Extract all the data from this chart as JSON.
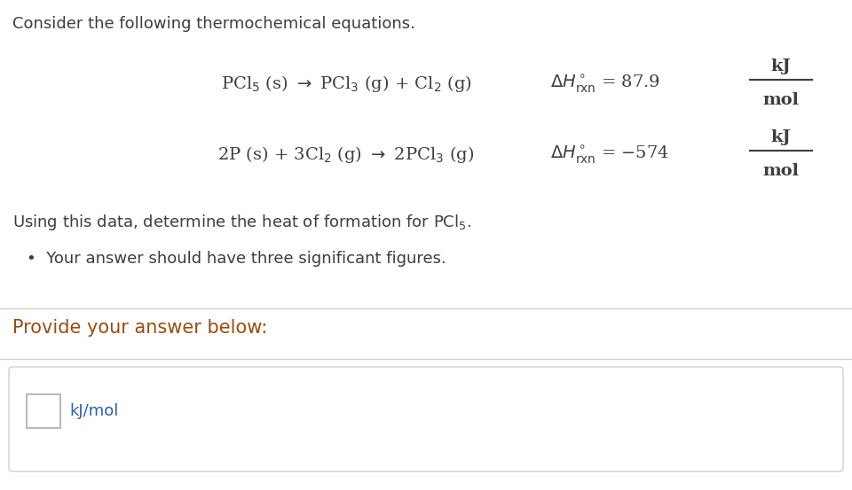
{
  "bg_color": "#ffffff",
  "text_color": "#3d3d3d",
  "title_text": "Consider the following thermochemical equations.",
  "eq1_lhs": "PCl$_5$ (s) $\\rightarrow$ PCl$_3$ (g) + Cl$_2$ (g)",
  "eq1_dH": "$\\Delta H^\\circ_{\\mathrm{rxn}}$ = 87.9",
  "eq1_unit_top": "kJ",
  "eq1_unit_bot": "mol",
  "eq2_lhs": "2P (s) + 3Cl$_2$ (g) $\\rightarrow$ 2PCl$_3$ (g)",
  "eq2_dH": "$\\Delta H^\\circ_{\\mathrm{rxn}}$ = −574",
  "eq2_unit_top": "kJ",
  "eq2_unit_bot": "mol",
  "using_text": "Using this data, determine the heat of formation for PCl$_5$.",
  "bullet_text": "Your answer should have three significant figures.",
  "provide_text": "Provide your answer below:",
  "provide_color": "#9b4d0f",
  "input_label": "kJ/mol",
  "input_label_color": "#2b5fa5",
  "line_color": "#d0d0d0",
  "box_bg_color": "#f9f9f9",
  "font_size_title": 13,
  "font_size_eq": 14,
  "font_size_body": 13,
  "font_size_unit": 13
}
